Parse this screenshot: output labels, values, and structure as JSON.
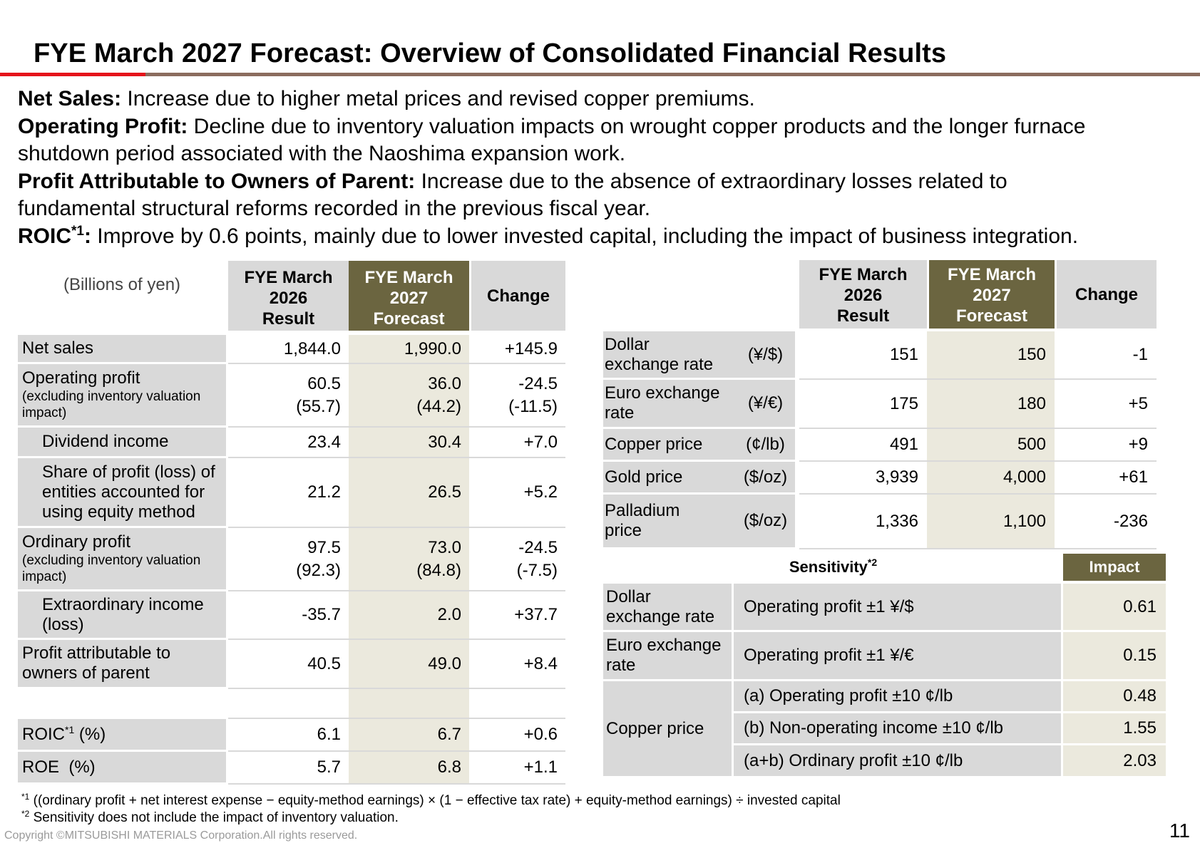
{
  "title": "FYE March 2027 Forecast: Overview of Consolidated Financial Results",
  "summary": {
    "net_sales": {
      "label": "Net Sales:",
      "text": " Increase due to higher metal prices and revised copper premiums."
    },
    "operating_profit": {
      "label": "Operating Profit:",
      "text_1": " Decline due to inventory valuation impacts on wrought copper products and the longer furnace",
      "text_2": "shutdown period associated with the Naoshima expansion work."
    },
    "profit_attributable": {
      "label": "Profit Attributable to Owners of Parent:",
      "text_1": " Increase due to the absence of extraordinary losses related to",
      "text_2": "fundamental structural reforms recorded in the previous fiscal year."
    },
    "roic": {
      "label": "ROIC",
      "sup": "*1",
      "colon": ":",
      "text": " Improve by 0.6 points, mainly due to lower invested capital, including the impact of business integration."
    }
  },
  "left_table": {
    "unit": "(Billions of yen)",
    "headers": {
      "result": [
        "FYE March",
        "2026",
        "Result"
      ],
      "forecast": [
        "FYE March",
        "2027",
        "Forecast"
      ],
      "change": "Change"
    },
    "rows": {
      "net_sales": {
        "label": "Net sales",
        "result": "1,844.0",
        "forecast": "1,990.0",
        "change": "+145.9"
      },
      "operating_profit": {
        "label": "Operating profit",
        "sub": "(excluding inventory valuation impact)",
        "result": "60.5",
        "result_sub": "(55.7)",
        "forecast": "36.0",
        "forecast_sub": "(44.2)",
        "change": "-24.5",
        "change_sub": "(-11.5)"
      },
      "dividend_income": {
        "label": "Dividend income",
        "result": "23.4",
        "forecast": "30.4",
        "change": "+7.0"
      },
      "equity_method": {
        "label_1": "Share of profit (loss) of",
        "label_2": "entities accounted for",
        "label_3": "using equity method",
        "result": "21.2",
        "forecast": "26.5",
        "change": "+5.2"
      },
      "ordinary_profit": {
        "label": "Ordinary profit",
        "sub": "(excluding inventory valuation impact)",
        "result": "97.5",
        "result_sub": "(92.3)",
        "forecast": "73.0",
        "forecast_sub": "(84.8)",
        "change": "-24.5",
        "change_sub": "(-7.5)"
      },
      "extraordinary": {
        "label_1": "Extraordinary income",
        "label_2": "(loss)",
        "result": "-35.7",
        "forecast": "2.0",
        "change": "+37.7"
      },
      "profit_attrib": {
        "label_1": "Profit attributable to",
        "label_2": "owners of parent",
        "result": "40.5",
        "forecast": "49.0",
        "change": "+8.4"
      },
      "roic": {
        "label": "ROIC",
        "sup": "*1",
        "unit": " (%)",
        "result": "6.1",
        "forecast": "6.7",
        "change": "+0.6"
      },
      "roe": {
        "label": "ROE  (%)",
        "result": "5.7",
        "forecast": "6.8",
        "change": "+1.1"
      }
    }
  },
  "right_table": {
    "headers": {
      "result": [
        "FYE March",
        "2026",
        "Result"
      ],
      "forecast": [
        "FYE March",
        "2027",
        "Forecast"
      ],
      "change": "Change"
    },
    "rows": {
      "dollar": {
        "label_1": "Dollar",
        "label_2": "exchange rate",
        "unit": "(¥/$)",
        "result": "151",
        "forecast": "150",
        "change": "-1"
      },
      "euro": {
        "label_1": "Euro exchange",
        "label_2": "rate",
        "unit": "(¥/€)",
        "result": "175",
        "forecast": "180",
        "change": "+5"
      },
      "copper": {
        "label": "Copper price",
        "unit": "(¢/lb)",
        "result": "491",
        "forecast": "500",
        "change": "+9"
      },
      "gold": {
        "label": "Gold price",
        "unit": "($/oz)",
        "result": "3,939",
        "forecast": "4,000",
        "change": "+61"
      },
      "palladium": {
        "label_1": "Palladium",
        "label_2": "price",
        "unit": "($/oz)",
        "result": "1,336",
        "forecast": "1,100",
        "change": "-236"
      }
    }
  },
  "sensitivity": {
    "title": "Sensitivity",
    "sup": "*2",
    "impact_header": "Impact",
    "rows": {
      "dollar": {
        "label_1": "Dollar",
        "label_2": "exchange rate",
        "desc": "Operating profit  ±1 ¥/$",
        "value": "0.61"
      },
      "euro": {
        "label_1": "Euro exchange",
        "label_2": "rate",
        "desc": "Operating profit  ±1 ¥/€",
        "value": "0.15"
      },
      "copper_label": "Copper price",
      "copper_a": {
        "desc": "(a) Operating profit  ±10 ¢/lb",
        "value": "0.48"
      },
      "copper_b": {
        "desc": "(b) Non-operating income  ±10 ¢/lb",
        "value": "1.55"
      },
      "copper_ab": {
        "desc": "(a+b) Ordinary profit  ±10 ¢/lb",
        "value": "2.03"
      }
    }
  },
  "footnotes": {
    "note1_mark": "*1",
    "note1": " ((ordinary profit + net interest expense  −  equity-method earnings)  ×  (1  −  effective tax rate) + equity-method earnings)  ÷  invested capital",
    "note2_mark": "*2",
    "note2": " Sensitivity does not include the impact of inventory valuation."
  },
  "copyright": "Copyright ©MITSUBISHI MATERIALS Corporation.All rights reserved.",
  "page_number": "11"
}
